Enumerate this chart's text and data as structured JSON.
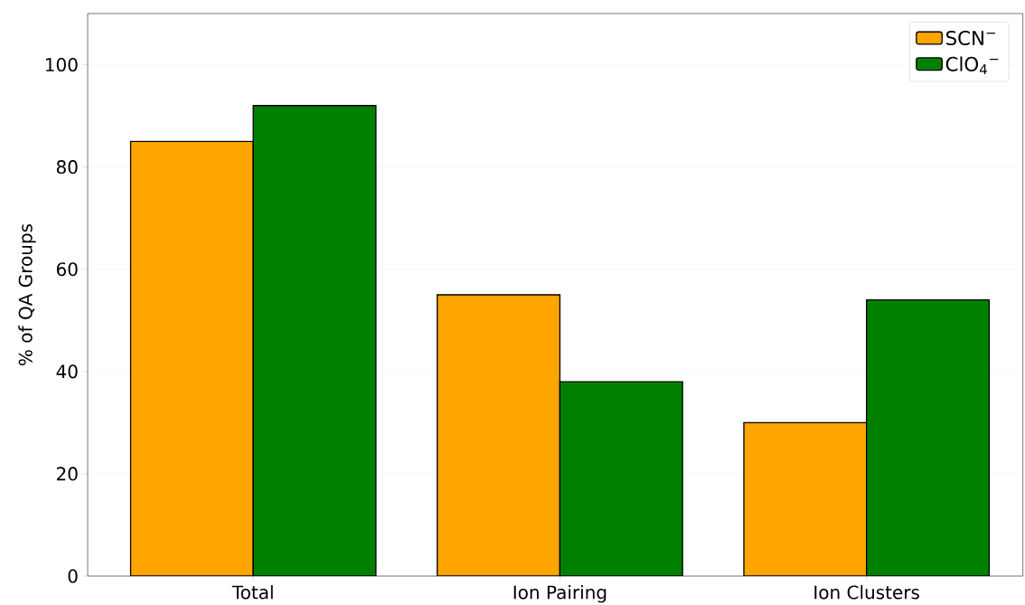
{
  "chart_data": {
    "type": "bar",
    "ylabel": "% of QA Groups",
    "categories": [
      "Total",
      "Ion Pairing",
      "Ion Clusters"
    ],
    "series": [
      {
        "name": "SCN$^{−}$",
        "color": "#ffa500",
        "values": [
          85,
          55,
          30
        ]
      },
      {
        "name": "ClO$_{4}$$^{−}$",
        "color": "#008000",
        "values": [
          92,
          38,
          54
        ]
      }
    ],
    "ylim": [
      0,
      110
    ],
    "yticks": [
      0,
      20,
      40,
      60,
      80,
      100
    ],
    "grid": "y",
    "legend": "top right"
  }
}
